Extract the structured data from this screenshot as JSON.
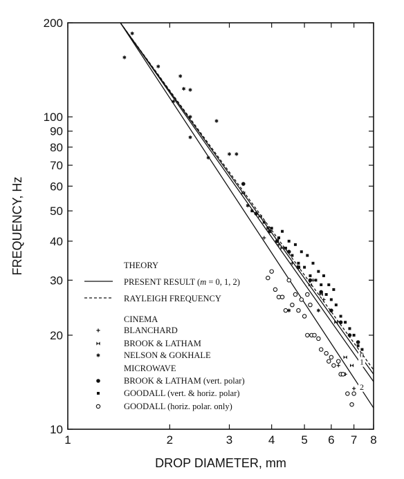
{
  "chart_data": {
    "type": "scatter",
    "xlabel": "DROP DIAMETER, mm",
    "ylabel": "FREQUENCY, Hz",
    "xscale": "log",
    "yscale": "log",
    "xlim": [
      1,
      8
    ],
    "ylim": [
      10,
      200
    ],
    "x_ticks": [
      1,
      2,
      3,
      4,
      5,
      6,
      7,
      8
    ],
    "y_ticks": [
      10,
      20,
      30,
      40,
      50,
      60,
      70,
      80,
      90,
      100,
      200
    ],
    "legend_placement": "lower-left",
    "legend": {
      "theory_heading": "THEORY",
      "present_result_prefix": "PRESENT RESULT (",
      "present_result_m": "m",
      "present_result_suffix": " = 0, 1, 2)",
      "rayleigh": "RAYLEIGH FREQUENCY",
      "cinema_heading": "CINEMA",
      "blanchard": "BLANCHARD",
      "brook_latham": "BROOK & LATHAM",
      "nelson_gokhale": "NELSON & GOKHALE",
      "microwave_heading": "MICROWAVE",
      "brook_latham_vert": "BROOK & LATHAM (vert. polar)",
      "goodall_both": "GOODALL (vert. & horiz. polar)",
      "goodall_horiz": "GOODALL (horiz. polar. only)"
    },
    "theory_lines": [
      {
        "label": "0",
        "style": "solid",
        "x": [
          1.43,
          8
        ],
        "y": [
          200,
          15.0
        ]
      },
      {
        "label": "1",
        "style": "solid",
        "x": [
          1.43,
          8
        ],
        "y": [
          200,
          14.2
        ]
      },
      {
        "label": "2",
        "style": "solid",
        "x": [
          1.43,
          8
        ],
        "y": [
          200,
          11.7
        ]
      },
      {
        "label": "",
        "style": "dashed",
        "x": [
          1.43,
          8
        ],
        "y": [
          200,
          15.5
        ]
      }
    ],
    "series": [
      {
        "marker": "plus",
        "points": [
          [
            3.8,
            41
          ],
          [
            4.2,
            39
          ],
          [
            4.6,
            34
          ],
          [
            5.3,
            30
          ],
          [
            5.7,
            26
          ],
          [
            6.0,
            24
          ],
          [
            6.3,
            16
          ],
          [
            6.6,
            15
          ],
          [
            7.0,
            13.5
          ]
        ]
      },
      {
        "marker": "bowtie",
        "points": [
          [
            3.3,
            57
          ],
          [
            3.7,
            48
          ],
          [
            4.3,
            38
          ],
          [
            4.8,
            33
          ],
          [
            5.2,
            29
          ],
          [
            5.6,
            27
          ],
          [
            6.2,
            22
          ],
          [
            6.6,
            17
          ],
          [
            6.9,
            16
          ]
        ]
      },
      {
        "marker": "asterisk",
        "points": [
          [
            1.47,
            155
          ],
          [
            1.55,
            185
          ],
          [
            1.85,
            145
          ],
          [
            2.05,
            112
          ],
          [
            2.15,
            135
          ],
          [
            2.2,
            123
          ],
          [
            2.3,
            122
          ],
          [
            2.3,
            100
          ],
          [
            2.3,
            86
          ],
          [
            2.6,
            74
          ],
          [
            2.75,
            97
          ],
          [
            3.0,
            76
          ],
          [
            3.15,
            76
          ],
          [
            3.4,
            52
          ],
          [
            3.9,
            44
          ],
          [
            4.5,
            24
          ],
          [
            5.5,
            24
          ]
        ]
      },
      {
        "marker": "dot",
        "points": [
          [
            3.3,
            61
          ],
          [
            3.6,
            49
          ],
          [
            3.95,
            43
          ],
          [
            4.15,
            40
          ],
          [
            4.5,
            37
          ],
          [
            4.8,
            33
          ],
          [
            5.2,
            30
          ],
          [
            5.6,
            27.5
          ],
          [
            6.0,
            24
          ],
          [
            6.4,
            22
          ],
          [
            6.8,
            20
          ],
          [
            7.2,
            19
          ]
        ]
      },
      {
        "marker": "square",
        "points": [
          [
            3.5,
            50
          ],
          [
            3.8,
            46
          ],
          [
            4.0,
            44
          ],
          [
            4.2,
            41
          ],
          [
            4.3,
            43
          ],
          [
            4.4,
            38
          ],
          [
            4.5,
            40
          ],
          [
            4.6,
            36
          ],
          [
            4.7,
            39
          ],
          [
            4.8,
            34
          ],
          [
            4.9,
            37
          ],
          [
            5.0,
            33
          ],
          [
            5.1,
            36
          ],
          [
            5.2,
            31
          ],
          [
            5.3,
            34
          ],
          [
            5.4,
            30
          ],
          [
            5.5,
            32
          ],
          [
            5.6,
            29
          ],
          [
            5.7,
            31
          ],
          [
            5.8,
            27
          ],
          [
            5.9,
            29
          ],
          [
            6.0,
            26
          ],
          [
            6.1,
            28
          ],
          [
            6.2,
            25
          ],
          [
            6.4,
            23
          ],
          [
            6.6,
            22
          ],
          [
            6.8,
            21
          ],
          [
            7.0,
            20
          ],
          [
            7.2,
            18.5
          ],
          [
            7.4,
            18
          ]
        ]
      },
      {
        "marker": "circle",
        "points": [
          [
            3.9,
            30.5
          ],
          [
            4.0,
            32
          ],
          [
            4.1,
            28
          ],
          [
            4.2,
            26.5
          ],
          [
            4.3,
            26.5
          ],
          [
            4.4,
            24
          ],
          [
            4.5,
            30
          ],
          [
            4.6,
            25
          ],
          [
            4.7,
            27
          ],
          [
            4.8,
            24
          ],
          [
            4.9,
            26
          ],
          [
            5.0,
            23
          ],
          [
            5.1,
            27
          ],
          [
            5.2,
            25
          ],
          [
            5.1,
            20
          ],
          [
            5.25,
            20
          ],
          [
            5.35,
            20
          ],
          [
            5.5,
            19.5
          ],
          [
            5.6,
            18
          ],
          [
            5.8,
            17.5
          ],
          [
            5.9,
            16.5
          ],
          [
            6.0,
            17
          ],
          [
            6.1,
            16
          ],
          [
            6.3,
            16.5
          ],
          [
            6.4,
            15
          ],
          [
            6.5,
            15
          ],
          [
            6.7,
            13
          ],
          [
            6.9,
            12
          ],
          [
            7.0,
            13
          ]
        ]
      }
    ]
  }
}
